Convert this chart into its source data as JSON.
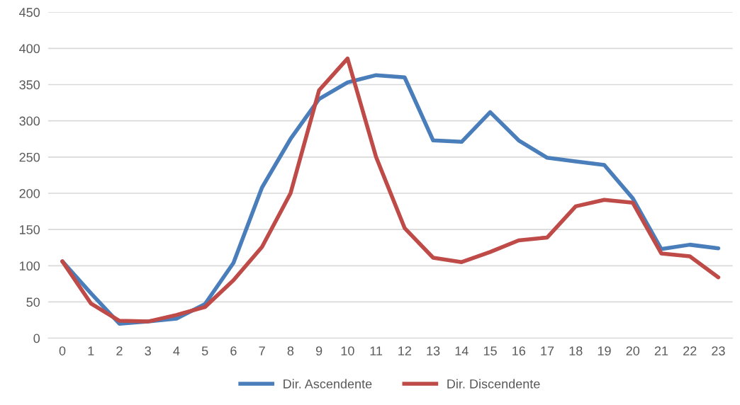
{
  "chart_data": {
    "type": "line",
    "categories": [
      "0",
      "1",
      "2",
      "3",
      "4",
      "5",
      "6",
      "7",
      "8",
      "9",
      "10",
      "11",
      "12",
      "13",
      "14",
      "15",
      "16",
      "17",
      "18",
      "19",
      "20",
      "21",
      "22",
      "23"
    ],
    "series": [
      {
        "name": "Dir. Ascendente",
        "color": "#4a7ebb",
        "values": [
          106,
          62,
          20,
          23,
          27,
          47,
          104,
          208,
          275,
          330,
          353,
          363,
          360,
          273,
          271,
          312,
          273,
          249,
          244,
          239,
          193,
          123,
          129,
          124
        ]
      },
      {
        "name": "Dir. Discendente",
        "color": "#be4b48",
        "values": [
          106,
          48,
          24,
          23,
          32,
          43,
          80,
          126,
          200,
          342,
          386,
          250,
          152,
          111,
          105,
          119,
          135,
          139,
          182,
          191,
          187,
          117,
          113,
          84
        ]
      }
    ],
    "ylim": [
      0,
      450
    ],
    "yticks": [
      0,
      50,
      100,
      150,
      200,
      250,
      300,
      350,
      400,
      450
    ],
    "grid": "y",
    "legend": "bottom",
    "marker": "none",
    "line_style": "solid"
  }
}
